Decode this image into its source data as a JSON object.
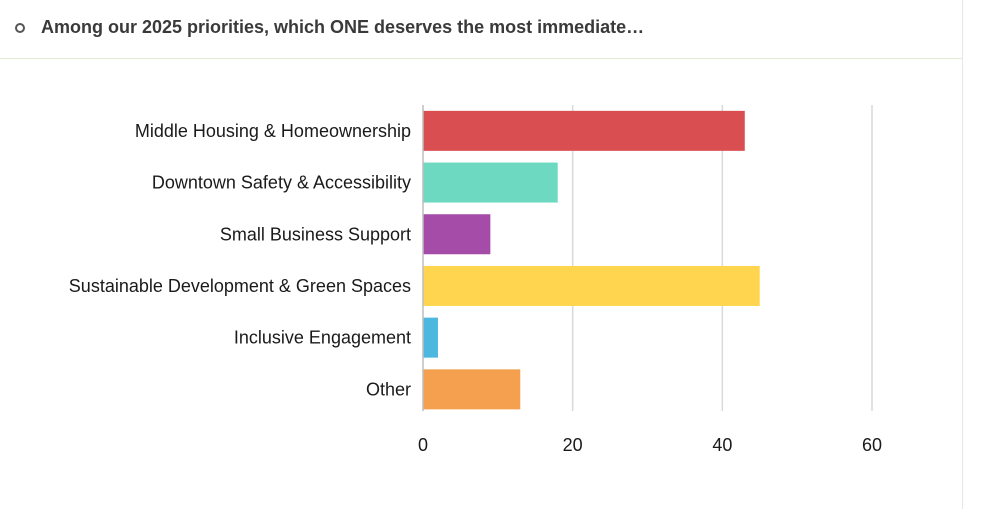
{
  "question": {
    "title": "Among our 2025 priorities, which ONE deserves the most immediate…"
  },
  "chart_data": {
    "type": "bar",
    "orientation": "horizontal",
    "title": "",
    "xlabel": "",
    "ylabel": "",
    "categories": [
      "Middle Housing & Homeownership",
      "Downtown Safety & Accessibility",
      "Small Business Support",
      "Sustainable Development & Green Spaces",
      "Inclusive Engagement",
      "Other"
    ],
    "values": [
      43,
      18,
      9,
      45,
      2,
      13
    ],
    "colors": [
      "#d94f51",
      "#6dd9c0",
      "#a54ca8",
      "#ffd54f",
      "#4cb8e0",
      "#f5a04f"
    ],
    "xlim": [
      0,
      60
    ],
    "xticks": [
      0,
      20,
      40,
      60
    ],
    "grid": true
  }
}
